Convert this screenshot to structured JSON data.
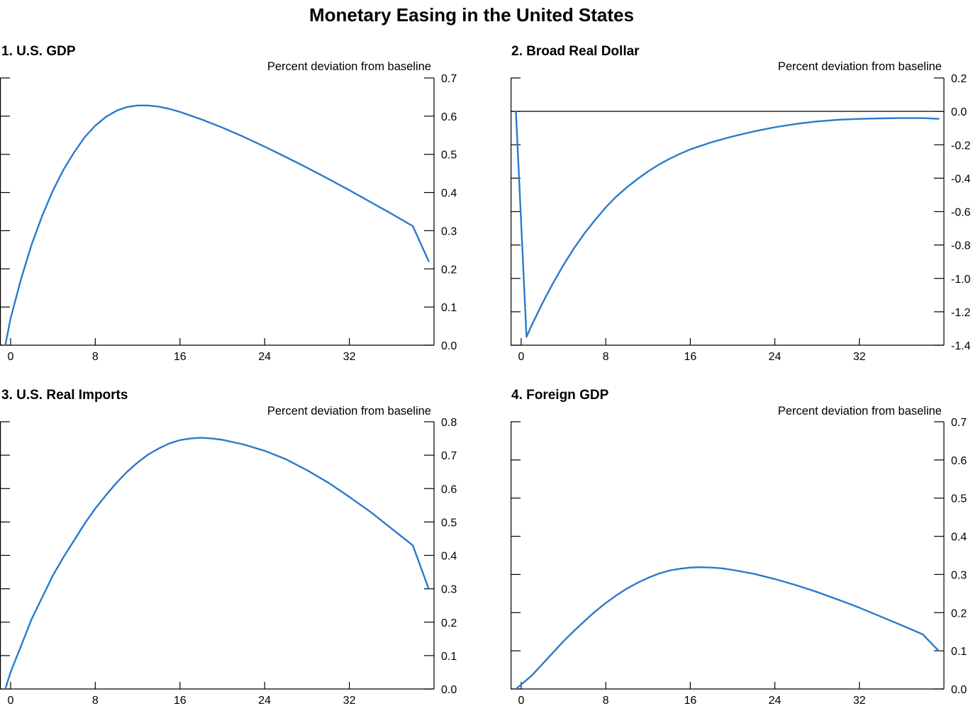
{
  "title": "Monetary Easing in the United States",
  "colors": {
    "series": "#2a7acb",
    "axis": "#000000",
    "zero_line": "#000000"
  },
  "chart_data": [
    {
      "type": "line",
      "title": "1. U.S. GDP",
      "units": "Percent deviation from baseline",
      "xlim": [
        -1,
        40
      ],
      "ylim": [
        0.0,
        0.7
      ],
      "x_ticks": [
        0,
        8,
        16,
        24,
        32
      ],
      "y_ticks": [
        "0.0",
        "0.1",
        "0.2",
        "0.3",
        "0.4",
        "0.5",
        "0.6",
        "0.7"
      ],
      "zero_line": false,
      "series": [
        {
          "x": [
            -0.5,
            0,
            1,
            2,
            3,
            4,
            5,
            6,
            7,
            8,
            9,
            10,
            11,
            12,
            13,
            14,
            15,
            16,
            18,
            20,
            22,
            24,
            26,
            28,
            30,
            32,
            34,
            36,
            38,
            39.5
          ],
          "values": [
            0.0,
            0.07,
            0.175,
            0.265,
            0.34,
            0.405,
            0.46,
            0.505,
            0.545,
            0.575,
            0.598,
            0.614,
            0.624,
            0.628,
            0.628,
            0.625,
            0.619,
            0.611,
            0.592,
            0.57,
            0.546,
            0.52,
            0.493,
            0.465,
            0.436,
            0.406,
            0.375,
            0.344,
            0.312,
            0.22
          ]
        }
      ]
    },
    {
      "type": "line",
      "title": "2. Broad Real Dollar",
      "units": "Percent deviation from baseline",
      "xlim": [
        -1,
        40
      ],
      "ylim": [
        -1.4,
        0.2
      ],
      "x_ticks": [
        0,
        8,
        16,
        24,
        32
      ],
      "y_ticks": [
        "0.2",
        "0.0",
        "-0.2",
        "-0.4",
        "-0.6",
        "-0.8",
        "-1.0",
        "-1.2",
        "-1.4"
      ],
      "zero_line": true,
      "series": [
        {
          "x": [
            -0.5,
            0.5,
            1,
            2,
            3,
            4,
            5,
            6,
            7,
            8,
            9,
            10,
            11,
            12,
            13,
            14,
            15,
            16,
            18,
            20,
            22,
            24,
            26,
            28,
            30,
            32,
            34,
            36,
            38,
            39.5
          ],
          "values": [
            0.0,
            -1.35,
            -1.28,
            -1.15,
            -1.03,
            -0.92,
            -0.82,
            -0.73,
            -0.65,
            -0.575,
            -0.51,
            -0.455,
            -0.405,
            -0.36,
            -0.32,
            -0.285,
            -0.255,
            -0.228,
            -0.185,
            -0.15,
            -0.12,
            -0.095,
            -0.075,
            -0.06,
            -0.05,
            -0.045,
            -0.042,
            -0.04,
            -0.04,
            -0.045
          ]
        }
      ]
    },
    {
      "type": "line",
      "title": "3. U.S. Real Imports",
      "units": "Percent deviation from baseline",
      "xlim": [
        -1,
        40
      ],
      "ylim": [
        0.0,
        0.8
      ],
      "x_ticks": [
        0,
        8,
        16,
        24,
        32
      ],
      "y_ticks": [
        "0.0",
        "0.1",
        "0.2",
        "0.3",
        "0.4",
        "0.5",
        "0.6",
        "0.7",
        "0.8"
      ],
      "zero_line": false,
      "series": [
        {
          "x": [
            -0.5,
            0,
            1,
            2,
            3,
            4,
            5,
            6,
            7,
            8,
            9,
            10,
            11,
            12,
            13,
            14,
            15,
            16,
            17,
            18,
            19,
            20,
            22,
            24,
            26,
            28,
            30,
            32,
            34,
            36,
            38,
            39.5
          ],
          "values": [
            0.0,
            0.05,
            0.13,
            0.21,
            0.275,
            0.34,
            0.395,
            0.445,
            0.495,
            0.54,
            0.58,
            0.617,
            0.65,
            0.678,
            0.702,
            0.72,
            0.735,
            0.745,
            0.75,
            0.752,
            0.75,
            0.746,
            0.732,
            0.713,
            0.688,
            0.655,
            0.618,
            0.575,
            0.53,
            0.48,
            0.43,
            0.3
          ]
        }
      ]
    },
    {
      "type": "line",
      "title": "4. Foreign GDP",
      "units": "Percent deviation from baseline",
      "xlim": [
        -1,
        40
      ],
      "ylim": [
        0.0,
        0.7
      ],
      "x_ticks": [
        0,
        8,
        16,
        24,
        32
      ],
      "y_ticks": [
        "0.0",
        "0.1",
        "0.2",
        "0.3",
        "0.4",
        "0.5",
        "0.6",
        "0.7"
      ],
      "zero_line": false,
      "series": [
        {
          "x": [
            -0.5,
            1,
            2,
            3,
            4,
            5,
            6,
            7,
            8,
            9,
            10,
            11,
            12,
            13,
            14,
            15,
            16,
            17,
            18,
            19,
            20,
            22,
            24,
            26,
            28,
            30,
            32,
            34,
            36,
            38,
            39.5
          ],
          "values": [
            0.0,
            0.035,
            0.065,
            0.095,
            0.125,
            0.152,
            0.178,
            0.203,
            0.225,
            0.245,
            0.263,
            0.278,
            0.291,
            0.302,
            0.31,
            0.315,
            0.318,
            0.319,
            0.318,
            0.316,
            0.312,
            0.302,
            0.288,
            0.272,
            0.254,
            0.234,
            0.213,
            0.19,
            0.167,
            0.143,
            0.1
          ]
        }
      ]
    }
  ]
}
